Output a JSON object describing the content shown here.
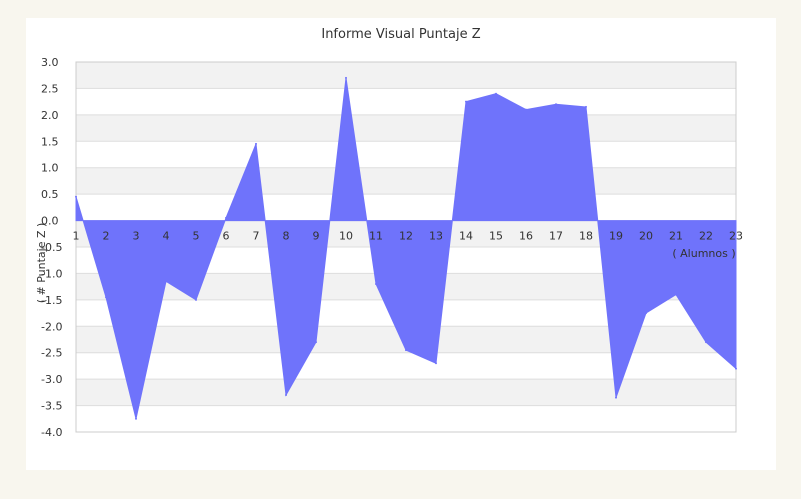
{
  "chart_data": {
    "type": "area",
    "title": "Informe Visual Puntaje Z",
    "xlabel": "( Alumnos )",
    "ylabel": "( # Puntaje Z )",
    "x": [
      1,
      2,
      3,
      4,
      5,
      6,
      7,
      8,
      9,
      10,
      11,
      12,
      13,
      14,
      15,
      16,
      17,
      18,
      19,
      20,
      21,
      22,
      23
    ],
    "series": [
      {
        "values": [
          0.45,
          -1.45,
          -3.75,
          -1.15,
          -1.5,
          0.05,
          1.45,
          -3.3,
          -2.3,
          2.7,
          -1.2,
          -2.45,
          -2.7,
          2.25,
          2.4,
          2.1,
          2.2,
          2.15,
          -3.35,
          -1.75,
          -1.4,
          -2.3,
          -2.8
        ]
      }
    ],
    "ylim": [
      -4.0,
      3.0
    ],
    "y_ticks": [
      "3.0",
      "2.5",
      "2.0",
      "1.5",
      "1.0",
      "0.5",
      "0.0",
      "-0.5",
      "-1.0",
      "-1.5",
      "-2.0",
      "-2.5",
      "-3.0",
      "-3.5",
      "-4.0"
    ],
    "x_ticks": [
      "1",
      "2",
      "3",
      "4",
      "5",
      "6",
      "7",
      "8",
      "9",
      "10",
      "11",
      "12",
      "13",
      "14",
      "15",
      "16",
      "17",
      "18",
      "19",
      "20",
      "21",
      "22",
      "23"
    ],
    "grid": "horizontal-bands",
    "colors": {
      "fill": "#6f73fb",
      "band": "#f2f2f2",
      "gridline": "#dddddd",
      "axis": "#cccccc"
    }
  }
}
